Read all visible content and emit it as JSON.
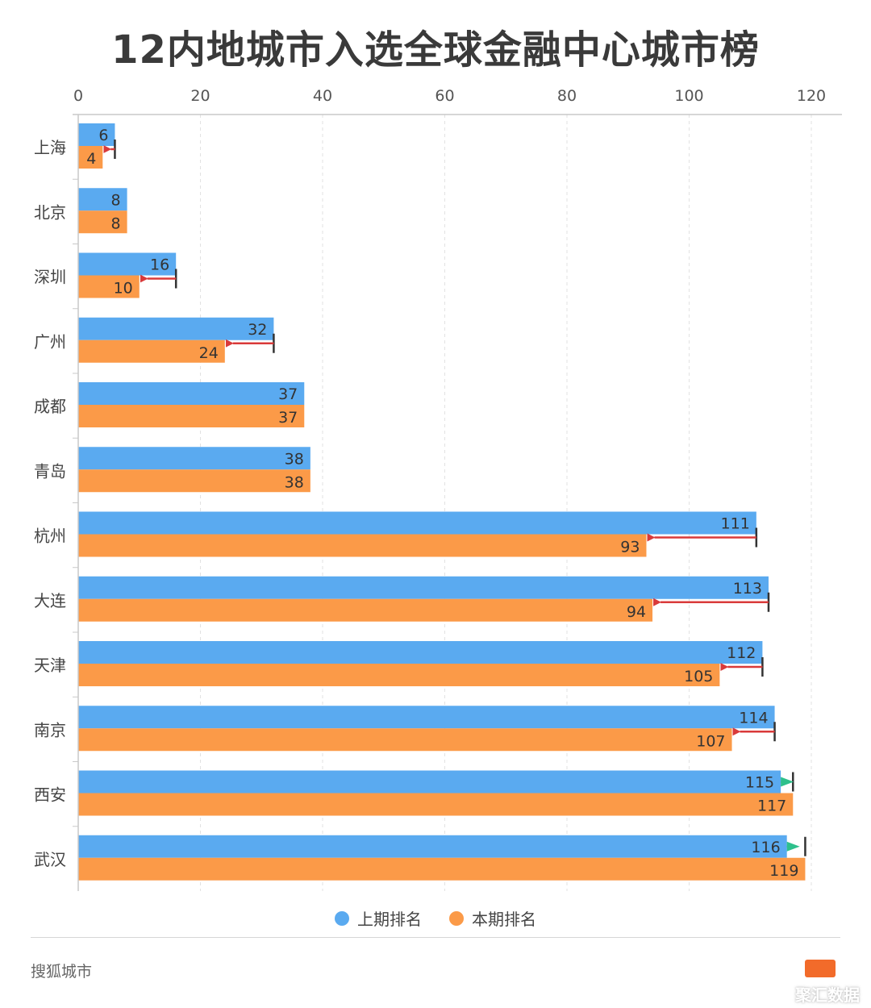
{
  "chart_data": {
    "type": "bar",
    "orientation": "horizontal",
    "title": "12内地城市入选全球金融中心城市榜",
    "categories": [
      "上海",
      "北京",
      "深圳",
      "广州",
      "成都",
      "青岛",
      "杭州",
      "大连",
      "天津",
      "南京",
      "西安",
      "武汉"
    ],
    "series": [
      {
        "name": "上期排名",
        "color": "#5aaaf0",
        "values": [
          6,
          8,
          16,
          32,
          37,
          38,
          111,
          113,
          112,
          114,
          115,
          116
        ]
      },
      {
        "name": "本期排名",
        "color": "#fb9a48",
        "values": [
          4,
          8,
          10,
          24,
          37,
          38,
          93,
          94,
          105,
          107,
          117,
          119
        ]
      }
    ],
    "xlim": [
      0,
      120
    ],
    "xticks": [
      0,
      20,
      40,
      60,
      80,
      100,
      120
    ],
    "axis_position": "top",
    "grid": true,
    "legend_position": "bottom",
    "change_arrow_colors": {
      "up": "#d93a3a",
      "down": "#2ec08c"
    }
  },
  "footer": {
    "source": "搜狐城市",
    "watermark": "聚汇数据"
  }
}
